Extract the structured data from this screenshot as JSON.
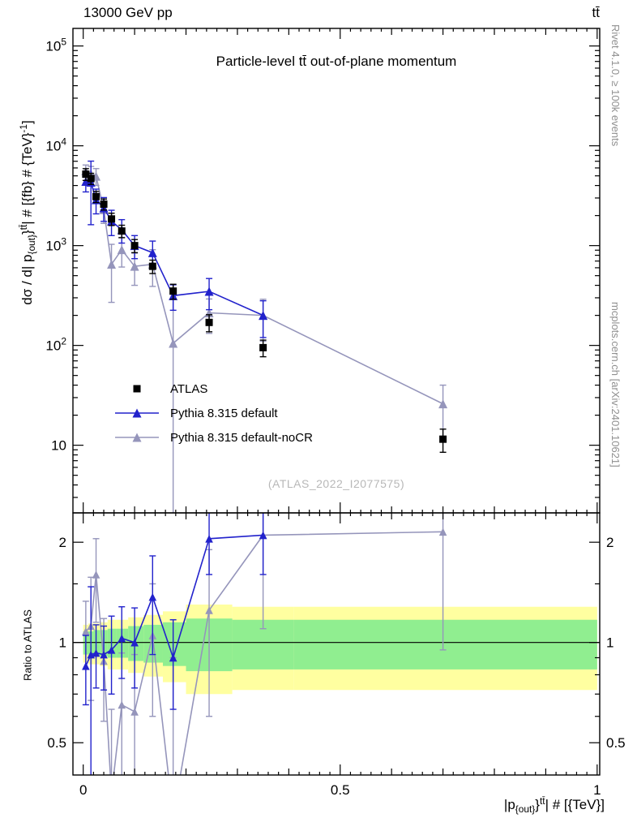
{
  "header": {
    "left": "13000 GeV pp",
    "right": "tt̄"
  },
  "watermark": "(ATLAS_2022_I2077575)",
  "side_notes": {
    "top": "Rivet 4.1.0, ≥ 100k events",
    "bottom": "mcplots.cern.ch [arXiv:2401.10621]"
  },
  "axis_labels": {
    "main_y": [
      {
        "t": "dσ / d| p"
      },
      {
        "t": "{out}",
        "s": "sub"
      },
      {
        "t": "}"
      },
      {
        "t": "tt̄",
        "s": "sup"
      },
      {
        "t": "| # [{fb} # {TeV}"
      },
      {
        "t": "-1",
        "s": "sup"
      },
      {
        "t": "]"
      }
    ],
    "main_x": [
      {
        "t": "|p"
      },
      {
        "t": "{out}",
        "s": "sub"
      },
      {
        "t": "}"
      },
      {
        "t": "tt̄",
        "s": "sup"
      },
      {
        "t": "| # [{TeV}]"
      }
    ]
  },
  "chart_data": {
    "type": "line",
    "title": "Particle-level tt̄ out-of-plane momentum",
    "xlabel": "|p_{out}}^tt| # [{TeV}]",
    "ylabel": "dσ / d| p_{out}}^tt| # [{fb} # {TeV}^-1]",
    "legend_position": "left-middle",
    "grid": false,
    "xlim": [
      -0.02,
      1.005
    ],
    "ylim_main": [
      2.1,
      150000
    ],
    "ylim_ratio": [
      0.4,
      2.45
    ],
    "x": [
      0.005,
      0.015,
      0.025,
      0.04,
      0.055,
      0.075,
      0.1,
      0.135,
      0.175,
      0.245,
      0.35,
      0.7
    ],
    "series": [
      {
        "id": "atlas",
        "name": "ATLAS",
        "marker": "square",
        "line": false,
        "color": "#000000",
        "values": [
          5200,
          4700,
          3100,
          2600,
          1850,
          1400,
          1000,
          620,
          350,
          170,
          95,
          11.5
        ],
        "errors": [
          700,
          600,
          400,
          330,
          260,
          200,
          150,
          95,
          60,
          33,
          18,
          3
        ]
      },
      {
        "id": "pythia-default",
        "name": "Pythia 8.315 default",
        "marker": "triangle",
        "line": true,
        "color": "#2222cc",
        "values": [
          4400,
          4320,
          2880,
          2390,
          1760,
          1440,
          1000,
          850,
          315,
          348,
          200,
          null
        ],
        "errors": [
          950,
          2700,
          800,
          640,
          500,
          380,
          260,
          260,
          90,
          120,
          80,
          null
        ]
      },
      {
        "id": "pythia-nocr",
        "name": "Pythia 8.315 default-noCR",
        "marker": "triangle",
        "line": true,
        "color": "#9595bb",
        "values": [
          5620,
          5260,
          4960,
          2290,
          650,
          910,
          620,
          650,
          105,
          212,
          200,
          26
        ],
        "errors": [
          800,
          950,
          950,
          620,
          380,
          300,
          220,
          260,
          300,
          80,
          90,
          14
        ]
      }
    ],
    "ratio": {
      "ylabel": "Ratio to ATLAS",
      "series": [
        {
          "name": "Pythia 8.315 default",
          "values": [
            0.85,
            0.92,
            0.93,
            0.92,
            0.95,
            1.03,
            1.0,
            1.37,
            0.9,
            2.05,
            2.1,
            null
          ],
          "errors": [
            0.2,
            0.55,
            0.2,
            0.2,
            0.25,
            0.25,
            0.27,
            0.45,
            0.27,
            0.45,
            0.5,
            null
          ]
        },
        {
          "name": "Pythia 8.315 default-noCR",
          "values": [
            1.08,
            1.12,
            1.6,
            0.88,
            0.35,
            0.65,
            0.62,
            1.05,
            0.3,
            1.25,
            2.1,
            2.15
          ],
          "errors": [
            0.25,
            0.45,
            0.45,
            0.3,
            0.28,
            0.28,
            0.3,
            0.45,
            0.6,
            0.65,
            1.0,
            1.2
          ]
        }
      ],
      "bands": {
        "edges": [
          0,
          0.01,
          0.02,
          0.0325,
          0.0475,
          0.065,
          0.0875,
          0.1175,
          0.155,
          0.2,
          0.29,
          0.41,
          1.0
        ],
        "yellow": [
          0.13,
          0.14,
          0.14,
          0.15,
          0.17,
          0.17,
          0.19,
          0.21,
          0.24,
          0.3,
          0.28,
          0.28
        ],
        "green": [
          0.08,
          0.08,
          0.09,
          0.09,
          0.1,
          0.1,
          0.12,
          0.13,
          0.15,
          0.18,
          0.17,
          0.17
        ]
      }
    },
    "x_ticks": [
      {
        "v": 0,
        "label": "0"
      },
      {
        "v": 0.5,
        "label": "0.5"
      },
      {
        "v": 1,
        "label": "1"
      }
    ],
    "y_ticks_main": [
      {
        "v": 10,
        "base": "10",
        "exp": ""
      },
      {
        "v": 100,
        "base": "10",
        "exp": "2"
      },
      {
        "v": 1000,
        "base": "10",
        "exp": "3"
      },
      {
        "v": 10000,
        "base": "10",
        "exp": "4"
      },
      {
        "v": 100000,
        "base": "10",
        "exp": "5"
      }
    ],
    "y_ticks_ratio": [
      {
        "v": 0.5,
        "label": "0.5"
      },
      {
        "v": 1,
        "label": "1"
      },
      {
        "v": 2,
        "label": "2"
      }
    ],
    "y_minor_ticks_ratio": [
      0.6,
      0.7,
      0.8,
      0.9,
      1.5
    ],
    "colors": {
      "atlas": "#000000",
      "pythia_default": "#2222cc",
      "pythia_nocr": "#9595bb",
      "band_yellow": "#ffffa0",
      "band_green": "#90ee90",
      "frame": "#000000",
      "side_text": "#909090",
      "watermark": "#b8b8b8"
    }
  }
}
